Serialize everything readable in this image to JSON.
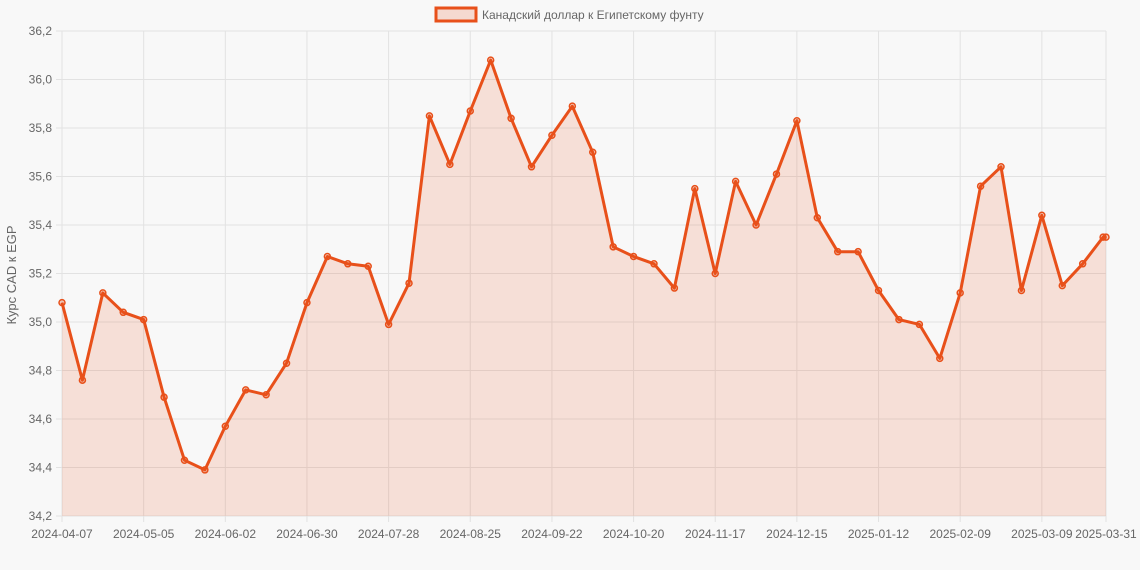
{
  "colors": {
    "line": "#e8501a",
    "fill": "#e8501a",
    "grid": "#e2e2e2",
    "text": "#666666",
    "background": "#f8f8f8"
  },
  "chart_data": {
    "type": "line",
    "title": "",
    "xlabel": "",
    "ylabel": "Курс CAD к EGP",
    "legend": {
      "position": "top-center",
      "entries": [
        "Канадский доллар к Египетскому фунту"
      ]
    },
    "grid": true,
    "filled": true,
    "ylim": [
      34.2,
      36.2
    ],
    "yticks": [
      "34,2",
      "34,4",
      "34,6",
      "34,8",
      "35,0",
      "35,2",
      "35,4",
      "35,6",
      "35,8",
      "36,0",
      "36,2"
    ],
    "xtick_labels": [
      "2024-04-07",
      "2024-05-05",
      "2024-06-02",
      "2024-06-30",
      "2024-07-28",
      "2024-08-25",
      "2024-09-22",
      "2024-10-20",
      "2024-11-17",
      "2024-12-15",
      "2025-01-12",
      "2025-02-09",
      "2025-03-09",
      "2025-03-31"
    ],
    "series": [
      {
        "name": "Канадский доллар к Египетскому фунту",
        "x": [
          "2024-04-07",
          "2024-04-14",
          "2024-04-21",
          "2024-04-28",
          "2024-05-05",
          "2024-05-12",
          "2024-05-19",
          "2024-05-26",
          "2024-06-02",
          "2024-06-09",
          "2024-06-16",
          "2024-06-23",
          "2024-06-30",
          "2024-07-07",
          "2024-07-14",
          "2024-07-21",
          "2024-07-28",
          "2024-08-04",
          "2024-08-11",
          "2024-08-18",
          "2024-08-25",
          "2024-09-01",
          "2024-09-08",
          "2024-09-15",
          "2024-09-22",
          "2024-09-29",
          "2024-10-06",
          "2024-10-13",
          "2024-10-20",
          "2024-10-27",
          "2024-11-03",
          "2024-11-10",
          "2024-11-17",
          "2024-11-24",
          "2024-12-01",
          "2024-12-08",
          "2024-12-15",
          "2024-12-22",
          "2024-12-29",
          "2025-01-05",
          "2025-01-12",
          "2025-01-19",
          "2025-01-26",
          "2025-02-02",
          "2025-02-09",
          "2025-02-16",
          "2025-02-23",
          "2025-03-02",
          "2025-03-09",
          "2025-03-16",
          "2025-03-23",
          "2025-03-30",
          "2025-03-31"
        ],
        "values": [
          35.08,
          34.76,
          35.12,
          35.04,
          35.01,
          34.69,
          34.43,
          34.39,
          34.57,
          34.72,
          34.7,
          34.83,
          35.08,
          35.27,
          35.24,
          35.23,
          34.99,
          35.16,
          35.85,
          35.65,
          35.87,
          36.08,
          35.84,
          35.64,
          35.77,
          35.89,
          35.7,
          35.31,
          35.27,
          35.24,
          35.14,
          35.55,
          35.2,
          35.58,
          35.4,
          35.61,
          35.83,
          35.43,
          35.29,
          35.29,
          35.13,
          35.01,
          34.99,
          34.85,
          35.12,
          35.56,
          35.64,
          35.13,
          35.44,
          35.15,
          35.24,
          35.35,
          35.35
        ]
      }
    ]
  }
}
